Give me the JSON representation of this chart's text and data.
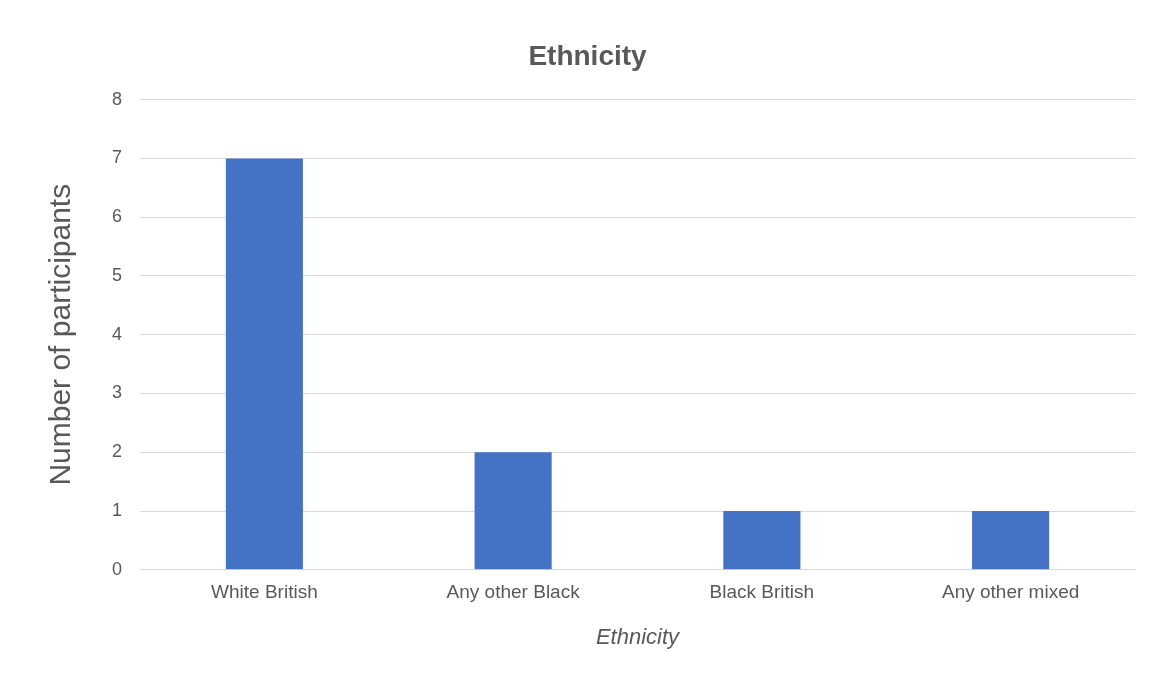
{
  "chart_data": {
    "type": "bar",
    "title": "Ethnicity",
    "xlabel": "Ethnicity",
    "ylabel": "Number of participants",
    "categories": [
      "White British",
      "Any other Black",
      "Black British",
      "Any other mixed"
    ],
    "values": [
      7,
      2,
      1,
      1
    ],
    "color": "#4472c4",
    "ylim": [
      0,
      8
    ],
    "yticks": [
      0,
      1,
      2,
      3,
      4,
      5,
      6,
      7,
      8
    ],
    "grid": "y",
    "legend": false
  }
}
